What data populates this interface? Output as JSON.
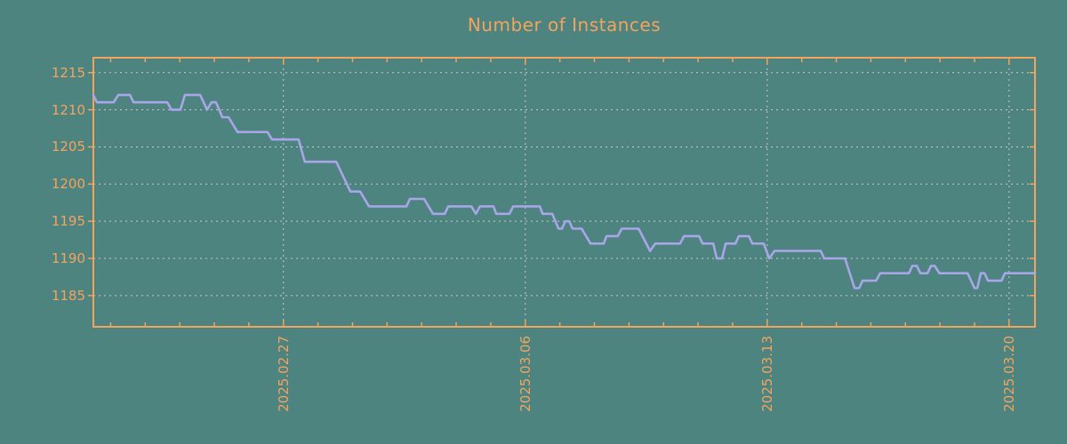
{
  "window": {
    "title": "Number of Instances"
  },
  "colors": {
    "background": "#4e8480",
    "accent_orange": "#f2a45f",
    "line": "#a8a5e8",
    "grid": "#c9cccc"
  },
  "chart_data": {
    "type": "line",
    "title": "Number of Instances",
    "legend": "none",
    "grid": "dashed",
    "x_axis": {
      "unit": "days since 2025-02-21 12:00",
      "range": [
        0,
        27.25
      ],
      "major_ticks": [
        {
          "offset": 5.5,
          "label": "2025.02.27"
        },
        {
          "offset": 12.5,
          "label": "2025.03.06"
        },
        {
          "offset": 19.5,
          "label": "2025.03.13"
        },
        {
          "offset": 26.5,
          "label": "2025.03.20"
        }
      ],
      "minor_tick_offsets_start": 0.5,
      "minor_tick_step_days": 1
    },
    "y_axis": {
      "range": [
        1180.8,
        1217.0
      ],
      "ticks": [
        1185,
        1190,
        1195,
        1200,
        1205,
        1210,
        1215
      ]
    },
    "series": [
      {
        "name": "instances",
        "points": [
          [
            0.0,
            1212
          ],
          [
            0.1,
            1211
          ],
          [
            0.59,
            1211
          ],
          [
            0.72,
            1212
          ],
          [
            1.06,
            1212
          ],
          [
            1.16,
            1211
          ],
          [
            2.14,
            1211
          ],
          [
            2.26,
            1210
          ],
          [
            2.52,
            1210
          ],
          [
            2.65,
            1212
          ],
          [
            3.09,
            1212
          ],
          [
            3.29,
            1210
          ],
          [
            3.42,
            1211
          ],
          [
            3.55,
            1211
          ],
          [
            3.73,
            1209
          ],
          [
            3.91,
            1209
          ],
          [
            4.17,
            1207
          ],
          [
            5.04,
            1207
          ],
          [
            5.17,
            1206
          ],
          [
            5.94,
            1206
          ],
          [
            6.12,
            1203
          ],
          [
            7.03,
            1203
          ],
          [
            7.44,
            1199
          ],
          [
            7.72,
            1199
          ],
          [
            7.98,
            1197
          ],
          [
            9.06,
            1197
          ],
          [
            9.16,
            1198
          ],
          [
            9.57,
            1198
          ],
          [
            9.83,
            1196
          ],
          [
            10.17,
            1196
          ],
          [
            10.27,
            1197
          ],
          [
            10.94,
            1197
          ],
          [
            11.07,
            1196
          ],
          [
            11.19,
            1197
          ],
          [
            11.58,
            1197
          ],
          [
            11.66,
            1196
          ],
          [
            12.04,
            1196
          ],
          [
            12.15,
            1197
          ],
          [
            12.92,
            1197
          ],
          [
            13.0,
            1196
          ],
          [
            13.28,
            1196
          ],
          [
            13.46,
            1194
          ],
          [
            13.56,
            1194
          ],
          [
            13.66,
            1195
          ],
          [
            13.77,
            1195
          ],
          [
            13.87,
            1194
          ],
          [
            14.13,
            1194
          ],
          [
            14.39,
            1192
          ],
          [
            14.77,
            1192
          ],
          [
            14.85,
            1193
          ],
          [
            15.18,
            1193
          ],
          [
            15.29,
            1194
          ],
          [
            15.78,
            1194
          ],
          [
            16.11,
            1191
          ],
          [
            16.26,
            1192
          ],
          [
            16.98,
            1192
          ],
          [
            17.09,
            1193
          ],
          [
            17.53,
            1193
          ],
          [
            17.63,
            1192
          ],
          [
            17.94,
            1192
          ],
          [
            18.04,
            1190
          ],
          [
            18.19,
            1190
          ],
          [
            18.3,
            1192
          ],
          [
            18.58,
            1192
          ],
          [
            18.68,
            1193
          ],
          [
            18.97,
            1193
          ],
          [
            19.07,
            1192
          ],
          [
            19.4,
            1192
          ],
          [
            19.56,
            1190
          ],
          [
            19.71,
            1191
          ],
          [
            21.05,
            1191
          ],
          [
            21.15,
            1190
          ],
          [
            21.75,
            1190
          ],
          [
            22.03,
            1186
          ],
          [
            22.16,
            1186
          ],
          [
            22.26,
            1187
          ],
          [
            22.65,
            1187
          ],
          [
            22.77,
            1188
          ],
          [
            23.6,
            1188
          ],
          [
            23.7,
            1189
          ],
          [
            23.83,
            1189
          ],
          [
            23.93,
            1188
          ],
          [
            24.14,
            1188
          ],
          [
            24.24,
            1189
          ],
          [
            24.35,
            1189
          ],
          [
            24.48,
            1188
          ],
          [
            25.3,
            1188
          ],
          [
            25.4,
            1187
          ],
          [
            25.5,
            1186
          ],
          [
            25.58,
            1186
          ],
          [
            25.68,
            1188
          ],
          [
            25.79,
            1188
          ],
          [
            25.89,
            1187
          ],
          [
            26.28,
            1187
          ],
          [
            26.38,
            1188
          ],
          [
            27.25,
            1188
          ]
        ]
      }
    ]
  }
}
